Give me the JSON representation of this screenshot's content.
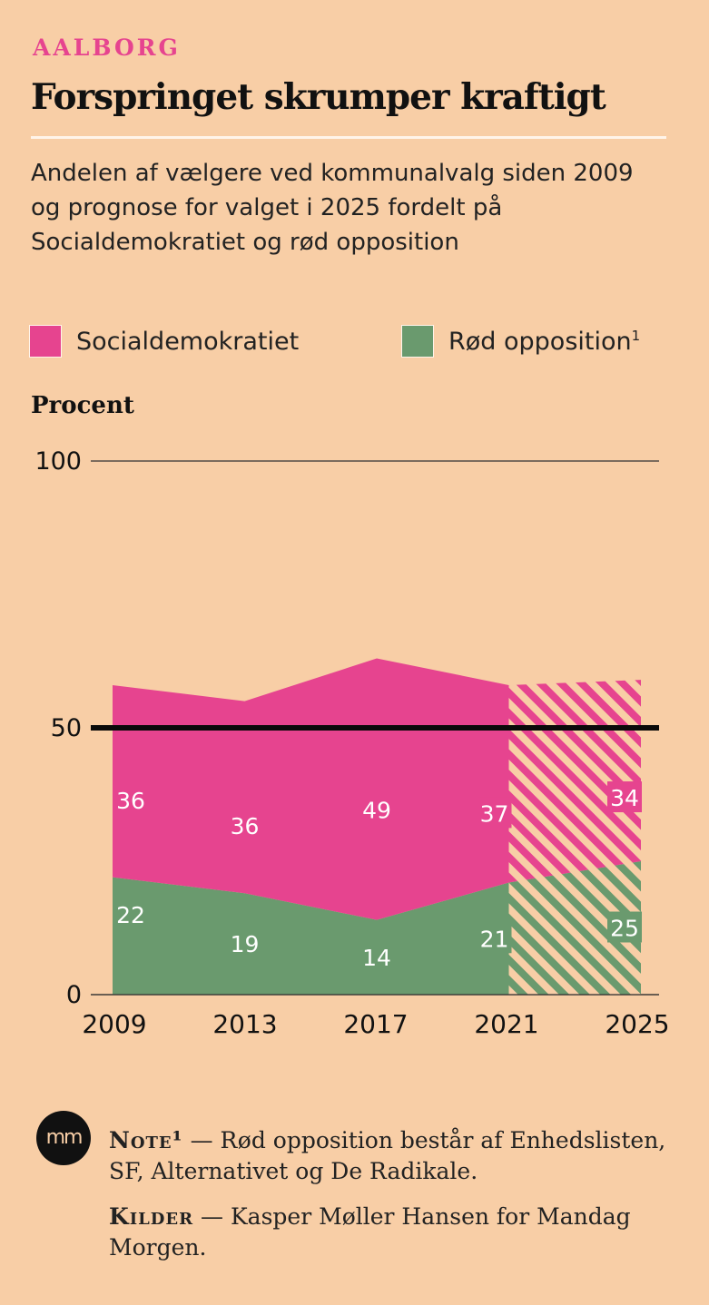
{
  "header": {
    "kicker": "AALBORG",
    "title": "Forspringet skrumper kraftigt",
    "subtitle": "Andelen af vælgere ved kommunalvalg siden 2009 og prognose for valget i 2025 fordelt på Socialdemokratiet og rød opposition"
  },
  "legend": {
    "items": [
      {
        "label": "Socialdemokratiet",
        "sup": "",
        "color": "#e6448f"
      },
      {
        "label": "Rød opposition",
        "sup": "1",
        "color": "#6a9a6e"
      }
    ]
  },
  "axis_title": "Procent",
  "chart_data": {
    "type": "area",
    "stacked": true,
    "x": [
      "2009",
      "2013",
      "2017",
      "2021",
      "2025"
    ],
    "series": [
      {
        "name": "Rød opposition",
        "values": [
          22,
          19,
          14,
          21,
          25
        ],
        "color": "#6a9a6e"
      },
      {
        "name": "Socialdemokratiet",
        "values": [
          36,
          36,
          49,
          37,
          34
        ],
        "color": "#e6448f"
      }
    ],
    "projection_from": "2021",
    "projection_style": "hatched",
    "reference_line": 50,
    "ylim": [
      0,
      100
    ],
    "yticks": [
      0,
      50,
      100
    ],
    "ylabel": "Procent",
    "legend_position": "top"
  },
  "footer": {
    "logo_text": "mm",
    "note_lead": "Note¹",
    "note_text": "— Rød opposition består af Enhedslisten, SF, Alternativet og De Radikale.",
    "sources_lead": "Kilder",
    "sources_text": "— Kasper Møller Hansen for Mandag Morgen."
  }
}
